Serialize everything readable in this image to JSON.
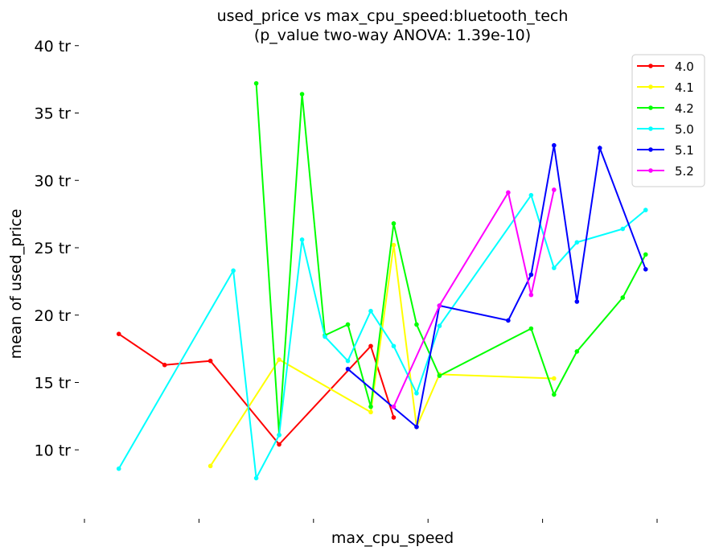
{
  "chart_data": {
    "type": "line",
    "title": "used_price vs max_cpu_speed:bluetooth_tech",
    "subtitle": "(p_value two-way ANOVA: 1.39e-10)",
    "xlabel": "max_cpu_speed",
    "ylabel": "mean of used_price",
    "xlim": [
      -0.5,
      24.5
    ],
    "ylim": [
      5,
      41
    ],
    "yticks": [
      10,
      15,
      20,
      25,
      30,
      35,
      40
    ],
    "ytick_labels": [
      "10 tr",
      "15 tr",
      "20 tr",
      "25 tr",
      "30 tr",
      "35 tr",
      "40 tr"
    ],
    "xticks": [
      -0.5,
      4.5,
      9.5,
      14.5,
      19.5,
      24.5
    ],
    "grid": false,
    "legend_position": "top-right",
    "series": [
      {
        "name": "4.0",
        "color": "#ff0000",
        "points": [
          [
            1,
            18.6
          ],
          [
            3,
            16.3
          ],
          [
            5,
            16.6
          ],
          [
            8,
            10.4
          ],
          [
            12,
            17.7
          ],
          [
            13,
            12.4
          ]
        ]
      },
      {
        "name": "4.1",
        "color": "#ffff00",
        "points": [
          [
            5,
            8.8
          ],
          [
            8,
            16.7
          ],
          [
            12,
            12.8
          ],
          [
            13,
            25.2
          ],
          [
            14,
            11.7
          ],
          [
            15,
            15.6
          ],
          [
            20,
            15.3
          ]
        ]
      },
      {
        "name": "4.2",
        "color": "#00ff00",
        "points": [
          [
            7,
            37.2
          ],
          [
            8,
            11.1
          ],
          [
            9,
            36.4
          ],
          [
            10,
            18.5
          ],
          [
            11,
            19.3
          ],
          [
            12,
            13.2
          ],
          [
            13,
            26.8
          ],
          [
            14,
            19.3
          ],
          [
            15,
            15.5
          ],
          [
            19,
            19.0
          ],
          [
            20,
            14.1
          ],
          [
            21,
            17.3
          ],
          [
            23,
            21.3
          ],
          [
            24,
            24.5
          ]
        ]
      },
      {
        "name": "5.0",
        "color": "#00ffff",
        "points": [
          [
            1,
            8.6
          ],
          [
            6,
            23.3
          ],
          [
            7,
            7.9
          ],
          [
            8,
            11.1
          ],
          [
            9,
            25.6
          ],
          [
            10,
            18.4
          ],
          [
            11,
            16.6
          ],
          [
            12,
            20.3
          ],
          [
            13,
            17.7
          ],
          [
            14,
            14.2
          ],
          [
            15,
            19.2
          ],
          [
            19,
            28.9
          ],
          [
            20,
            23.5
          ],
          [
            21,
            25.4
          ],
          [
            23,
            26.4
          ],
          [
            24,
            27.8
          ]
        ]
      },
      {
        "name": "5.1",
        "color": "#0000ff",
        "points": [
          [
            11,
            16.0
          ],
          [
            14,
            11.7
          ],
          [
            15,
            20.7
          ],
          [
            18,
            19.6
          ],
          [
            19,
            23.0
          ],
          [
            20,
            32.6
          ],
          [
            21,
            21.0
          ],
          [
            22,
            32.4
          ],
          [
            24,
            23.4
          ]
        ]
      },
      {
        "name": "5.2",
        "color": "#ff00ff",
        "points": [
          [
            13,
            13.2
          ],
          [
            15,
            20.7
          ],
          [
            18,
            29.1
          ],
          [
            19,
            21.5
          ],
          [
            20,
            29.3
          ]
        ]
      }
    ]
  }
}
